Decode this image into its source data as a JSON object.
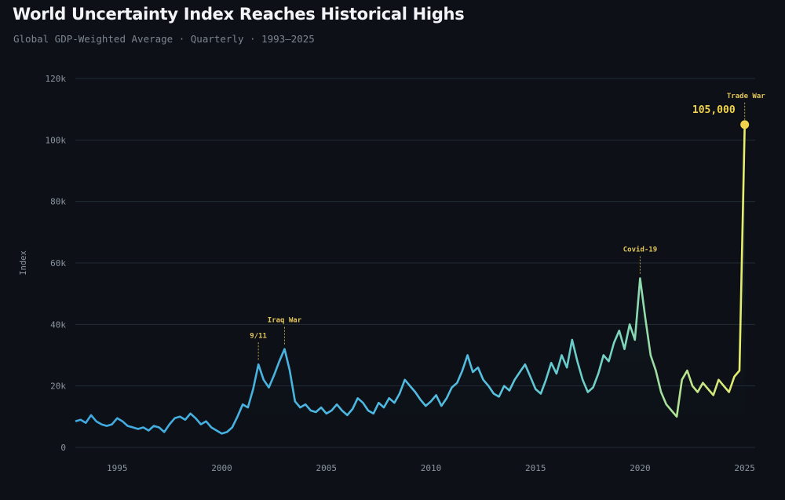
{
  "title": "World Uncertainty Index Reaches Historical Highs",
  "subtitle": "Global GDP-Weighted Average · Quarterly · 1993–2025",
  "colors": {
    "background": "#0d1117",
    "grid": "#232b36",
    "line_early": "#4fb3e8",
    "line_mid": "#6fd0c8",
    "line_late": "#d8e86a",
    "highlight": "#f0d34c"
  },
  "chart_data": {
    "type": "line",
    "title": "World Uncertainty Index Reaches Historical Highs",
    "subtitle": "Global GDP-Weighted Average · Quarterly · 1993–2025",
    "xlabel": "",
    "ylabel": "Index",
    "xlim": [
      1993,
      2025.5
    ],
    "ylim": [
      0,
      120000
    ],
    "x_ticks": [
      1995,
      2000,
      2005,
      2010,
      2015,
      2020,
      2025
    ],
    "y_ticks": [
      {
        "value": 0,
        "label": "0"
      },
      {
        "value": 20000,
        "label": "20k"
      },
      {
        "value": 40000,
        "label": "40k"
      },
      {
        "value": 60000,
        "label": "60k"
      },
      {
        "value": 80000,
        "label": "80k"
      },
      {
        "value": 100000,
        "label": "100k"
      },
      {
        "value": 120000,
        "label": "120k"
      }
    ],
    "grid": "horizontal",
    "series": [
      {
        "x": [
          1993.0,
          1993.25,
          1993.5,
          1993.75,
          1994.0,
          1994.25,
          1994.5,
          1994.75,
          1995.0,
          1995.25,
          1995.5,
          1995.75,
          1996.0,
          1996.25,
          1996.5,
          1996.75,
          1997.0,
          1997.25,
          1997.5,
          1997.75,
          1998.0,
          1998.25,
          1998.5,
          1998.75,
          1999.0,
          1999.25,
          1999.5,
          1999.75,
          2000.0,
          2000.25,
          2000.5,
          2000.75,
          2001.0,
          2001.25,
          2001.5,
          2001.75,
          2002.0,
          2002.25,
          2002.5,
          2002.75,
          2003.0,
          2003.25,
          2003.5,
          2003.75,
          2004.0,
          2004.25,
          2004.5,
          2004.75,
          2005.0,
          2005.25,
          2005.5,
          2005.75,
          2006.0,
          2006.25,
          2006.5,
          2006.75,
          2007.0,
          2007.25,
          2007.5,
          2007.75,
          2008.0,
          2008.25,
          2008.5,
          2008.75,
          2009.0,
          2009.25,
          2009.5,
          2009.75,
          2010.0,
          2010.25,
          2010.5,
          2010.75,
          2011.0,
          2011.25,
          2011.5,
          2011.75,
          2012.0,
          2012.25,
          2012.5,
          2012.75,
          2013.0,
          2013.25,
          2013.5,
          2013.75,
          2014.0,
          2014.25,
          2014.5,
          2014.75,
          2015.0,
          2015.25,
          2015.5,
          2015.75,
          2016.0,
          2016.25,
          2016.5,
          2016.75,
          2017.0,
          2017.25,
          2017.5,
          2017.75,
          2018.0,
          2018.25,
          2018.5,
          2018.75,
          2019.0,
          2019.25,
          2019.5,
          2019.75,
          2020.0,
          2020.25,
          2020.5,
          2020.75,
          2021.0,
          2021.25,
          2021.5,
          2021.75,
          2022.0,
          2022.25,
          2022.5,
          2022.75,
          2023.0,
          2023.25,
          2023.5,
          2023.75,
          2024.0,
          2024.25,
          2024.5,
          2024.75,
          2025.0
        ],
        "values": [
          8500,
          9000,
          8000,
          10500,
          8500,
          7500,
          7000,
          7500,
          9500,
          8500,
          7000,
          6500,
          6000,
          6500,
          5500,
          7000,
          6500,
          5000,
          7500,
          9500,
          10000,
          9000,
          11000,
          9500,
          7500,
          8500,
          6500,
          5500,
          4500,
          5000,
          6500,
          10000,
          14000,
          13000,
          19000,
          27000,
          22000,
          19500,
          23500,
          28000,
          32000,
          25000,
          15000,
          13000,
          14000,
          12000,
          11500,
          13000,
          11000,
          12000,
          14000,
          12000,
          10500,
          12500,
          16000,
          14500,
          12000,
          11000,
          14500,
          13000,
          16000,
          14500,
          17500,
          22000,
          20000,
          18000,
          15500,
          13500,
          15000,
          17000,
          13500,
          16000,
          19500,
          21000,
          25000,
          30000,
          24500,
          26000,
          22000,
          20000,
          17500,
          16500,
          20000,
          18500,
          22000,
          24500,
          27000,
          23000,
          19000,
          17500,
          22000,
          27500,
          24000,
          30000,
          26000,
          35000,
          28000,
          22000,
          18000,
          19500,
          24000,
          30000,
          28000,
          34000,
          38000,
          32000,
          40000,
          35000,
          55000,
          42000,
          30000,
          25000,
          18000,
          14000,
          12000,
          10000,
          22000,
          25000,
          20000,
          18000,
          21000,
          19000,
          17000,
          22000,
          20000,
          18000,
          23000,
          25000,
          105000
        ]
      }
    ],
    "annotations": [
      {
        "label": "9/11",
        "x": 2001.75,
        "y": 27000
      },
      {
        "label": "Iraq War",
        "x": 2003.0,
        "y": 32000
      },
      {
        "label": "Covid-19",
        "x": 2020.0,
        "y": 55000
      },
      {
        "label": "Trade War",
        "x": 2025.0,
        "y": 105000
      }
    ],
    "callout": {
      "label": "105,000",
      "x": 2025.0,
      "y": 105000
    }
  }
}
